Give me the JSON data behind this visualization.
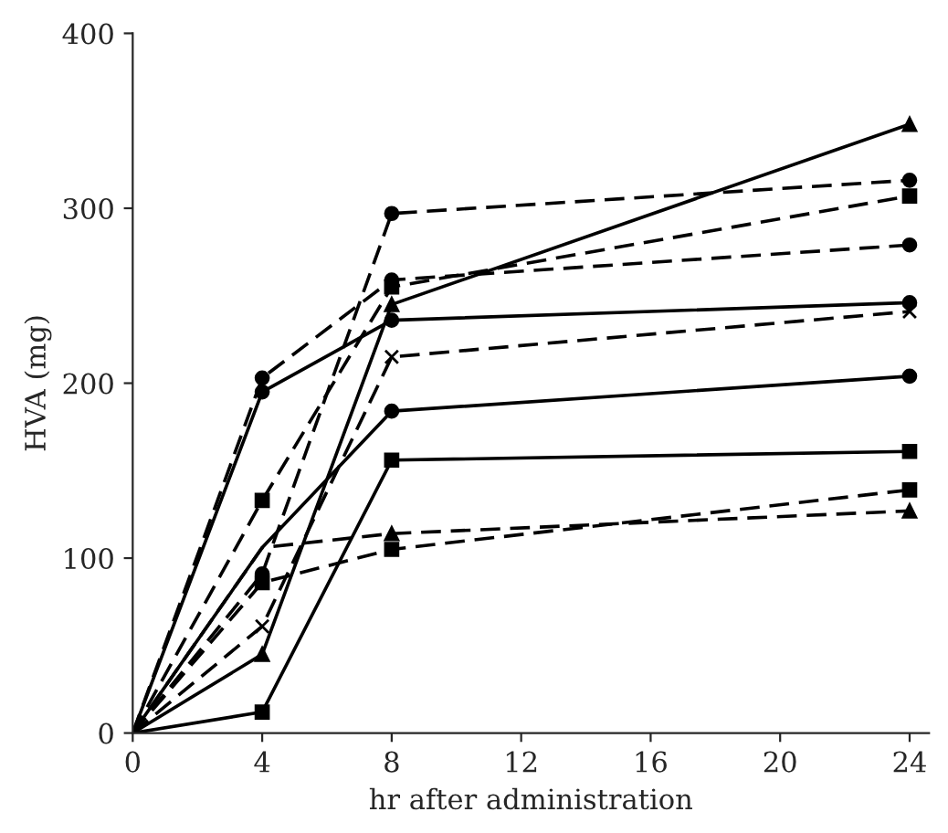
{
  "chart_data": {
    "type": "line",
    "xlabel": "hr after administration",
    "ylabel": "HVA (mg)",
    "x": [
      0,
      4,
      8,
      24
    ],
    "xlim": [
      0,
      24.6
    ],
    "xticks": [
      0,
      4,
      8,
      12,
      16,
      20,
      24
    ],
    "ylim": [
      0,
      400
    ],
    "yticks": [
      0,
      100,
      200,
      300,
      400
    ],
    "grid": false,
    "legend": false,
    "series": [
      {
        "color": "#000000",
        "line_style": "solid",
        "marker": "triangle",
        "values": [
          0,
          45,
          245,
          348
        ]
      },
      {
        "color": "#000000",
        "line_style": "dashed",
        "marker": "circle",
        "values": [
          0,
          91,
          297,
          316
        ]
      },
      {
        "color": "#000000",
        "line_style": "dashed",
        "marker": "square",
        "values": [
          0,
          133,
          255,
          307
        ]
      },
      {
        "color": "#000000",
        "line_style": "dashed",
        "marker": "circle",
        "values": [
          0,
          203,
          259,
          279
        ]
      },
      {
        "color": "#000000",
        "line_style": "solid",
        "marker": "circle",
        "values": [
          0,
          195,
          236,
          246
        ]
      },
      {
        "color": "#000000",
        "line_style": "dashed",
        "marker": "cross",
        "values": [
          0,
          61,
          215,
          241
        ]
      },
      {
        "color": "#000000",
        "line_style": "solid",
        "marker": "circle",
        "values": [
          0,
          106,
          184,
          204
        ]
      },
      {
        "color": "#000000",
        "line_style": "solid",
        "marker": "square",
        "values": [
          0,
          12,
          156,
          161
        ]
      },
      {
        "color": "#000000",
        "line_style": "dashed",
        "marker": "triangle",
        "values": [
          0,
          106,
          114,
          127
        ]
      },
      {
        "color": "#000000",
        "line_style": "dashed",
        "marker": "square",
        "values": [
          0,
          86,
          105,
          139
        ]
      }
    ]
  }
}
